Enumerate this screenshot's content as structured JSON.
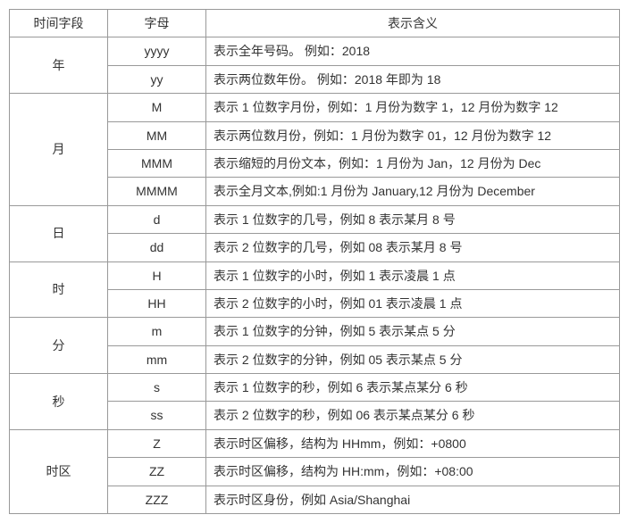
{
  "headers": {
    "col1": "时间字段",
    "col2": "字母",
    "col3": "表示含义"
  },
  "groups": [
    {
      "field": "年",
      "rows": [
        {
          "letter": "yyyy",
          "meaning": "表示全年号码。 例如：2018"
        },
        {
          "letter": "yy",
          "meaning": "表示两位数年份。 例如：2018 年即为 18"
        }
      ]
    },
    {
      "field": "月",
      "rows": [
        {
          "letter": "M",
          "meaning": "表示 1 位数字月份，例如：1 月份为数字 1，12 月份为数字 12"
        },
        {
          "letter": "MM",
          "meaning": "表示两位数月份，例如：1 月份为数字 01，12 月份为数字 12"
        },
        {
          "letter": "MMM",
          "meaning": "表示缩短的月份文本，例如：1 月份为 Jan，12 月份为 Dec"
        },
        {
          "letter": "MMMM",
          "meaning": "表示全月文本,例如:1 月份为 January,12 月份为 December"
        }
      ]
    },
    {
      "field": "日",
      "rows": [
        {
          "letter": "d",
          "meaning": "表示 1 位数字的几号，例如 8 表示某月 8 号"
        },
        {
          "letter": "dd",
          "meaning": "表示 2 位数字的几号，例如 08 表示某月 8 号"
        }
      ]
    },
    {
      "field": "时",
      "rows": [
        {
          "letter": "H",
          "meaning": "表示 1 位数字的小时，例如 1 表示凌晨 1 点"
        },
        {
          "letter": "HH",
          "meaning": "表示 2 位数字的小时，例如 01 表示凌晨 1 点"
        }
      ]
    },
    {
      "field": "分",
      "rows": [
        {
          "letter": "m",
          "meaning": "表示 1 位数字的分钟，例如 5 表示某点 5 分"
        },
        {
          "letter": "mm",
          "meaning": "表示 2 位数字的分钟，例如 05 表示某点 5 分"
        }
      ]
    },
    {
      "field": "秒",
      "rows": [
        {
          "letter": "s",
          "meaning": "表示 1 位数字的秒，例如 6 表示某点某分 6 秒"
        },
        {
          "letter": "ss",
          "meaning": "表示 2 位数字的秒，例如 06 表示某点某分 6 秒"
        }
      ]
    },
    {
      "field": "时区",
      "rows": [
        {
          "letter": "Z",
          "meaning": "表示时区偏移，结构为 HHmm，例如：+0800"
        },
        {
          "letter": "ZZ",
          "meaning": "表示时区偏移，结构为 HH:mm，例如：+08:00"
        },
        {
          "letter": "ZZZ",
          "meaning": "表示时区身份，例如 Asia/Shanghai"
        }
      ]
    }
  ]
}
